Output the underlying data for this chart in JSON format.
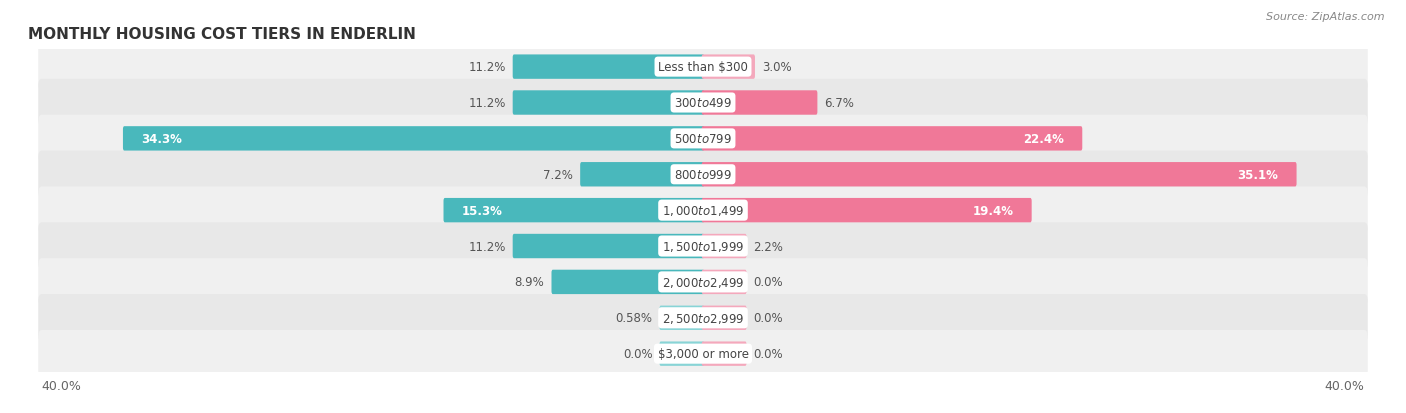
{
  "title": "MONTHLY HOUSING COST TIERS IN ENDERLIN",
  "source": "Source: ZipAtlas.com",
  "categories": [
    "Less than $300",
    "$300 to $499",
    "$500 to $799",
    "$800 to $999",
    "$1,000 to $1,499",
    "$1,500 to $1,999",
    "$2,000 to $2,499",
    "$2,500 to $2,999",
    "$3,000 or more"
  ],
  "owner_values": [
    11.2,
    11.2,
    34.3,
    7.2,
    15.3,
    11.2,
    8.9,
    0.58,
    0.0
  ],
  "owner_labels": [
    "11.2%",
    "11.2%",
    "34.3%",
    "7.2%",
    "15.3%",
    "11.2%",
    "8.9%",
    "0.58%",
    "0.0%"
  ],
  "renter_values": [
    3.0,
    6.7,
    22.4,
    35.1,
    19.4,
    2.2,
    0.0,
    0.0,
    0.0
  ],
  "renter_labels": [
    "3.0%",
    "6.7%",
    "22.4%",
    "35.1%",
    "19.4%",
    "2.2%",
    "0.0%",
    "0.0%",
    "0.0%"
  ],
  "owner_color": "#49b8bc",
  "renter_color": "#f07898",
  "owner_color_light": "#88d4d6",
  "renter_color_light": "#f4a8bc",
  "axis_limit": 40.0,
  "min_stub": 2.5,
  "title_fontsize": 11,
  "label_fontsize": 8.5,
  "tick_fontsize": 9,
  "source_fontsize": 8,
  "legend_fontsize": 9,
  "category_fontsize": 8.5,
  "row_colors": [
    "#f0f0f0",
    "#e8e8e8",
    "#f0f0f0",
    "#e8e8e8",
    "#f0f0f0",
    "#e8e8e8",
    "#f0f0f0",
    "#e8e8e8",
    "#f0f0f0"
  ]
}
